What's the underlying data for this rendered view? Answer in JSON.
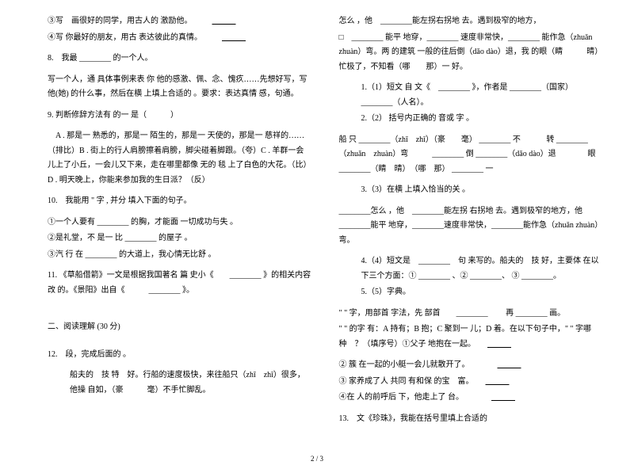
{
  "left": {
    "q3": "③写　画很好的同学，用古人的 激励他。",
    "q4": "④写 你最好的朋友，用古 表达彼此的真情。",
    "q8": "8.　我最 ________ 的一个人。",
    "q8p": "写一个人，通 具体事例来表 你 他的感激、佩、念、愧疚……先想好写，写他(她) 的什么事，然后在横 上填上合适的 。要求：表达真情 感，句通。",
    "q9": "9.  判断修辞方法有 的一 是（　　　）",
    "q9a": "　A . 那是一 熟悉的，那是一 陌生的，那是一 天使的，那是一 慈祥的……（排比）B . 街上的行人肩膀擦着肩膀，脚尖碰着脚跟。（夸）C . 羊群一会儿上了小丘，一会儿又下来，走在哪里都像 无的 毯 上了白色的大花。（比）D . 明天晚上，你能来参加我的生日派？（反）",
    "q10": "10.　我能用 \" 字 , 并分 填入下面的句子。",
    "q10a": "①一个人要有 ________ 的胸，才能面 一切成功与失 。",
    "q10b": "②是礼堂，不 是一 比 ________ 的屋子 。",
    "q10c": "③汽 行 在 ________ 的大道上，我心情无比舒 。",
    "q11": "11. 《草船借箭》一文是根据我国著名 篇 史小《　　________ 》的相关内容改 的。《景阳》出自《　　　________ 》。",
    "sec2": "二、阅读理解 (30 分)",
    "q12": "12.　段，完成后面的 。",
    "q12p": "船夫的　技 特　好。行船的速度极快，来往船只（zhī　zhǐ）很多，他操 自如，（豪　　　毫）不手忙脚乱。"
  },
  "right": {
    "p1": "怎么 ，他　________能左拐右拐地  去。遇到极窄的地方，",
    "p2": "□　________ 能平 地穿，________ 速度非常快，________ 能作急（zhuǎn zhuàn）弯。两 的建筑 一般的往后倒（dǎo dào）退，我 的眼（睛　　　晴）忙极了，不知看（哪　　那）一 好。",
    "i1": "1.（1）短文 自 文《　________ 》，作者是 ________（国家）________（人名）。",
    "i2": "2.（2）  括号内正确的 音或 字 。",
    "i2p": "船 只 ________（zhī　zhǐ）（豪　　毫） ________ 不 　　　转 ________（zhuǎn　zhuàn）弯　　　________ 倒 ________（dǎo  dào）退　　　　眼 ________（睛　晴）　（哪　那） ________ 一",
    "i3": "3.（3）在横 上填入恰当的关 。",
    "i3p": "________怎么 ，他　________能左拐 右拐地  去。遇到极窄的地方，他　________能平 地穿，________速度非常快，________能作急（zhuǎn  zhuàn）弯。",
    "i4": "4.（4）短文是　________　句 来写的。船夫的　技 好，主要体 在以下三个方面：① ________ 、② ________、 ③ ________。",
    "i5": "5.（5）字典。",
    "d1": "\" \" 字，用部首 字法，先 部首　　________ 　　再 ________ 画。",
    "d2": "\" \" 的字 有：A 持有；B 抱；C 聚到一 儿；D 着。在以下句子中，\" \" 字哪种　？（填序号）①父子  地抱在一起。",
    "d3": "② 簇 在一起的小艇一会儿就散开了。",
    "d4": "③ 家养成了人 共同 有和保 的宝　富。",
    "d5": "④在 人的前呼后 下，他走上了 台。",
    "q13": "13.　文《珍珠》，我能在括号里填上合适的"
  },
  "footer": "2 / 3"
}
